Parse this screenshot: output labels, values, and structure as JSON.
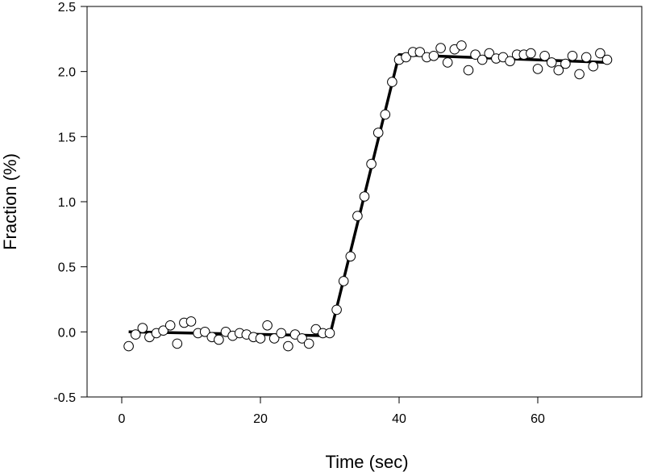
{
  "chart_data": {
    "type": "scatter",
    "title": "",
    "xlabel": "Time (sec)",
    "ylabel": "Fraction (%)",
    "xlim": [
      -5,
      75
    ],
    "ylim": [
      -0.5,
      2.5
    ],
    "x_ticks": [
      {
        "value": 0,
        "label": "0"
      },
      {
        "value": 20,
        "label": "20"
      },
      {
        "value": 40,
        "label": "40"
      },
      {
        "value": 60,
        "label": "60"
      }
    ],
    "y_ticks": [
      {
        "value": -0.5,
        "label": "-0.5"
      },
      {
        "value": 0.0,
        "label": "0.0"
      },
      {
        "value": 0.5,
        "label": "0.5"
      },
      {
        "value": 1.0,
        "label": "1.0"
      },
      {
        "value": 1.5,
        "label": "1.5"
      },
      {
        "value": 2.0,
        "label": "2.0"
      },
      {
        "value": 2.5,
        "label": "2.5"
      }
    ],
    "grid": false,
    "legend": "none",
    "points": {
      "x": [
        1,
        2,
        3,
        4,
        5,
        6,
        7,
        8,
        9,
        10,
        11,
        12,
        13,
        14,
        15,
        16,
        17,
        18,
        19,
        20,
        21,
        22,
        23,
        24,
        25,
        26,
        27,
        28,
        29,
        30,
        31,
        32,
        33,
        34,
        35,
        36,
        37,
        38,
        39,
        40,
        41,
        42,
        43,
        44,
        45,
        46,
        47,
        48,
        49,
        50,
        51,
        52,
        53,
        54,
        55,
        56,
        57,
        58,
        59,
        60,
        61,
        62,
        63,
        64,
        65,
        66,
        67,
        68,
        69,
        70
      ],
      "y": [
        -0.11,
        -0.02,
        0.03,
        -0.04,
        -0.01,
        0.01,
        0.05,
        -0.09,
        0.07,
        0.08,
        -0.01,
        0.0,
        -0.04,
        -0.06,
        0.0,
        -0.03,
        -0.01,
        -0.02,
        -0.04,
        -0.05,
        0.05,
        -0.05,
        -0.01,
        -0.11,
        -0.02,
        -0.05,
        -0.09,
        0.02,
        -0.01,
        -0.01,
        0.17,
        0.39,
        0.58,
        0.89,
        1.04,
        1.29,
        1.53,
        1.67,
        1.92,
        2.09,
        2.11,
        2.15,
        2.15,
        2.11,
        2.12,
        2.18,
        2.07,
        2.17,
        2.2,
        2.01,
        2.13,
        2.09,
        2.14,
        2.1,
        2.11,
        2.08,
        2.13,
        2.13,
        2.14,
        2.02,
        2.12,
        2.07,
        2.01,
        2.06,
        2.12,
        1.98,
        2.11,
        2.04,
        2.14,
        2.09
      ],
      "marker": "open-circle",
      "fill": "#ffffff",
      "stroke": "#000000"
    },
    "fit_line": {
      "x": [
        1,
        30,
        40,
        70
      ],
      "y": [
        0.0,
        -0.03,
        2.13,
        2.07
      ],
      "color": "#000000"
    }
  }
}
